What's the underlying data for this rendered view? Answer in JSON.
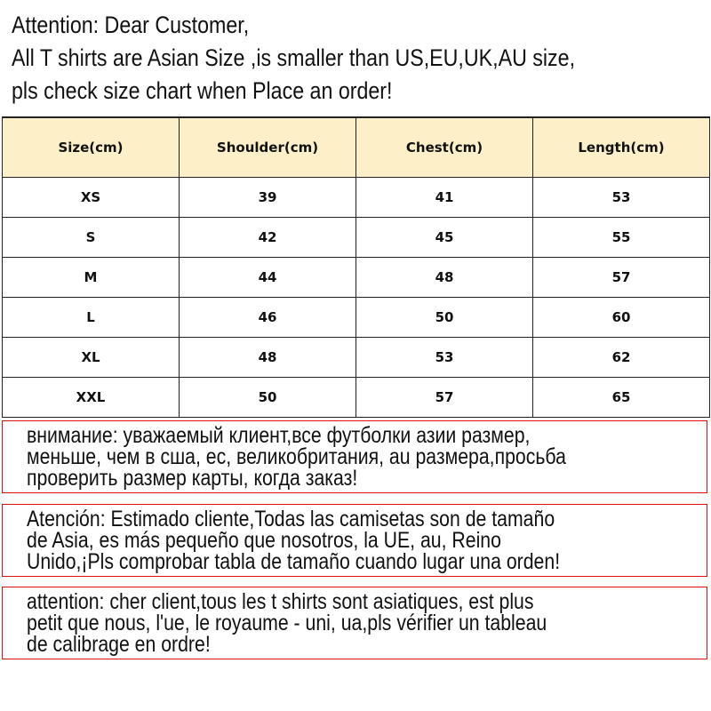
{
  "intro": {
    "lines": [
      "Attention: Dear Customer,",
      "All T shirts are  Asian Size ,is smaller than US,EU,UK,AU size,",
      "pls check size chart when Place an order!"
    ]
  },
  "table": {
    "header_bg": "#fdf0c9",
    "headers": [
      "Size(cm)",
      "Shoulder(cm)",
      "Chest(cm)",
      "Length(cm)"
    ],
    "rows": [
      [
        "XS",
        "39",
        "41",
        "53"
      ],
      [
        "S",
        "42",
        "45",
        "55"
      ],
      [
        "M",
        "44",
        "48",
        "57"
      ],
      [
        "L",
        "46",
        "50",
        "60"
      ],
      [
        "XL",
        "48",
        "53",
        "62"
      ],
      [
        "XXL",
        "50",
        "57",
        "65"
      ]
    ]
  },
  "notices": {
    "border_color": "#e01010",
    "russian": [
      "внимание: уважаемый клиент,все футболки азии размер,",
      "меньше, чем в сша, ес, великобритания, au размера,просьба",
      "проверить размер карты, когда заказ!"
    ],
    "spanish": [
      "Atención: Estimado cliente,Todas las camisetas son de tamaño",
      "de Asia, es más pequeño que nosotros, la UE, au, Reino",
      "Unido,¡Pls comprobar tabla de tamaño cuando lugar una orden!"
    ],
    "french": [
      "attention: cher client,tous les t shirts sont asiatiques, est plus",
      "petit que nous, l'ue, le royaume - uni, ua,pls vérifier un tableau",
      "de calibrage en ordre!"
    ]
  }
}
